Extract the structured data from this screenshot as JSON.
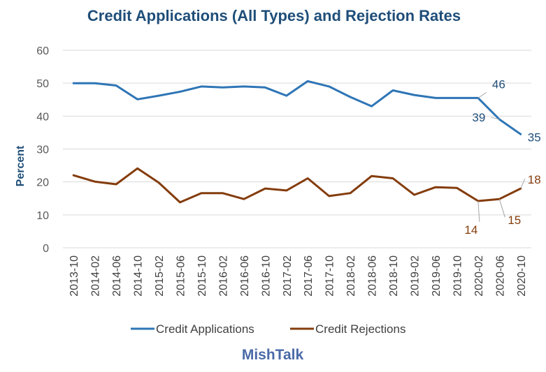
{
  "watermark": "MishTalk",
  "chart_data": {
    "type": "line",
    "title": "Credit Applications (All Types) and Rejection Rates",
    "xlabel": "",
    "ylabel": "Percent",
    "ylim": [
      0,
      60
    ],
    "yticks": [
      0,
      10,
      20,
      30,
      40,
      50,
      60
    ],
    "grid": true,
    "legend_position": "bottom",
    "categories": [
      "2013-10",
      "2014-02",
      "2014-06",
      "2014-10",
      "2015-02",
      "2015-06",
      "2015-10",
      "2016-02",
      "2016-06",
      "2016-10",
      "2017-02",
      "2017-06",
      "2017-10",
      "2018-02",
      "2018-06",
      "2018-10",
      "2019-02",
      "2019-06",
      "2019-10",
      "2020-02",
      "2020-06",
      "2020-10"
    ],
    "series": [
      {
        "name": "Credit Applications",
        "color": "#2e75b6",
        "label_color": "#1f4e79",
        "values": [
          50.0,
          50.0,
          49.3,
          45.1,
          46.2,
          47.4,
          49.0,
          48.7,
          49.0,
          48.7,
          46.2,
          50.6,
          49.0,
          45.8,
          43.0,
          47.8,
          46.4,
          45.5,
          45.5,
          45.5,
          39.0,
          34.5
        ],
        "data_labels": [
          {
            "index": 19,
            "text": "46"
          },
          {
            "index": 20,
            "text": "39"
          },
          {
            "index": 21,
            "text": "35"
          }
        ]
      },
      {
        "name": "Credit Rejections",
        "color": "#843c0c",
        "label_color": "#843c0c",
        "values": [
          22.0,
          20.1,
          19.3,
          24.1,
          19.8,
          13.8,
          16.6,
          16.6,
          14.8,
          18.0,
          17.4,
          21.1,
          15.7,
          16.6,
          21.8,
          21.1,
          16.1,
          18.4,
          18.2,
          14.2,
          14.8,
          18.0
        ],
        "data_labels": [
          {
            "index": 19,
            "text": "14"
          },
          {
            "index": 20,
            "text": "15"
          },
          {
            "index": 21,
            "text": "18"
          }
        ]
      }
    ]
  }
}
